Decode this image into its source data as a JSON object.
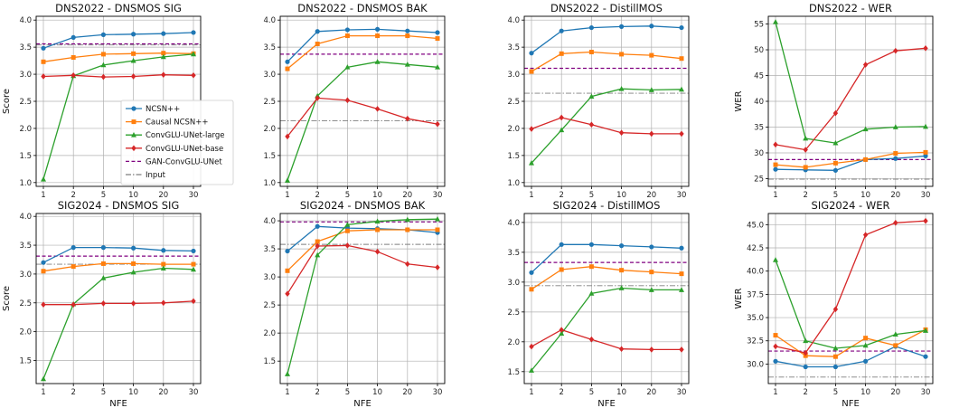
{
  "chart_data": {
    "type": "line",
    "x": [
      "1",
      "2",
      "5",
      "10",
      "20",
      "30"
    ],
    "xlabel": "NFE",
    "series_styles": [
      {
        "name": "NCSN++",
        "color": "#1f77b4",
        "marker": "circle",
        "dash": "solid"
      },
      {
        "name": "Causal NCSN++",
        "color": "#ff7f0e",
        "marker": "square",
        "dash": "solid"
      },
      {
        "name": "ConvGLU-UNet-large",
        "color": "#2ca02c",
        "marker": "triangle",
        "dash": "solid"
      },
      {
        "name": "ConvGLU-UNet-base",
        "color": "#d62728",
        "marker": "diamond",
        "dash": "solid"
      },
      {
        "name": "GAN-ConvGLU-UNet",
        "color": "#800080",
        "marker": "none",
        "dash": "dashed"
      },
      {
        "name": "Input",
        "color": "#7f7f7f",
        "marker": "none",
        "dash": "dashdot"
      }
    ],
    "panels": [
      {
        "title": "DNS2022 - DNSMOS SIG",
        "ylabel": "Score",
        "ylim": [
          0.93,
          4.07
        ],
        "yticks": [
          "1.0",
          "1.5",
          "2.0",
          "2.5",
          "3.0",
          "3.5",
          "4.0"
        ],
        "legend": "center-right",
        "series": [
          {
            "name": "NCSN++",
            "values": [
              3.48,
              3.68,
              3.73,
              3.74,
              3.75,
              3.77
            ]
          },
          {
            "name": "Causal NCSN++",
            "values": [
              3.23,
              3.31,
              3.37,
              3.38,
              3.39,
              3.38
            ]
          },
          {
            "name": "ConvGLU-UNet-large",
            "values": [
              1.06,
              2.97,
              3.17,
              3.25,
              3.32,
              3.37
            ]
          },
          {
            "name": "ConvGLU-UNet-base",
            "values": [
              2.96,
              2.98,
              2.95,
              2.96,
              2.99,
              2.98
            ]
          },
          {
            "name": "GAN-ConvGLU-UNet",
            "hline": 3.56
          },
          {
            "name": "Input",
            "hline": 3.54
          }
        ]
      },
      {
        "title": "DNS2022 - DNSMOS BAK",
        "ylabel": "",
        "ylim": [
          0.93,
          4.07
        ],
        "yticks": [
          "1.0",
          "1.5",
          "2.0",
          "2.5",
          "3.0",
          "3.5",
          "4.0"
        ],
        "series": [
          {
            "name": "NCSN++",
            "values": [
              3.23,
              3.79,
              3.82,
              3.83,
              3.8,
              3.77
            ]
          },
          {
            "name": "Causal NCSN++",
            "values": [
              3.1,
              3.56,
              3.71,
              3.71,
              3.71,
              3.66
            ]
          },
          {
            "name": "ConvGLU-UNet-large",
            "values": [
              1.04,
              2.6,
              3.13,
              3.23,
              3.18,
              3.13
            ]
          },
          {
            "name": "ConvGLU-UNet-base",
            "values": [
              1.85,
              2.56,
              2.52,
              2.36,
              2.18,
              2.08
            ]
          },
          {
            "name": "GAN-ConvGLU-UNet",
            "hline": 3.37
          },
          {
            "name": "Input",
            "hline": 2.14
          }
        ]
      },
      {
        "title": "DNS2022 - DistillMOS",
        "ylabel": "",
        "ylim": [
          0.93,
          4.07
        ],
        "yticks": [
          "1.0",
          "1.5",
          "2.0",
          "2.5",
          "3.0",
          "3.5",
          "4.0"
        ],
        "series": [
          {
            "name": "NCSN++",
            "values": [
              3.39,
              3.8,
              3.86,
              3.88,
              3.89,
              3.86
            ]
          },
          {
            "name": "Causal NCSN++",
            "values": [
              3.05,
              3.38,
              3.41,
              3.37,
              3.35,
              3.29
            ]
          },
          {
            "name": "ConvGLU-UNet-large",
            "values": [
              1.36,
              1.97,
              2.59,
              2.73,
              2.71,
              2.72
            ]
          },
          {
            "name": "ConvGLU-UNet-base",
            "values": [
              1.99,
              2.2,
              2.07,
              1.92,
              1.9,
              1.9
            ]
          },
          {
            "name": "GAN-ConvGLU-UNet",
            "hline": 3.11
          },
          {
            "name": "Input",
            "hline": 2.65
          }
        ]
      },
      {
        "title": "DNS2022 - WER",
        "ylabel": "WER",
        "ylim": [
          23.5,
          56.5
        ],
        "yticks": [
          "25",
          "30",
          "35",
          "40",
          "45",
          "50",
          "55"
        ],
        "series": [
          {
            "name": "NCSN++",
            "values": [
              26.8,
              26.7,
              26.6,
              28.7,
              28.9,
              29.4
            ]
          },
          {
            "name": "Causal NCSN++",
            "values": [
              27.7,
              27.2,
              28.0,
              28.7,
              29.9,
              30.1
            ]
          },
          {
            "name": "ConvGLU-UNet-large",
            "values": [
              55.4,
              32.8,
              31.9,
              34.6,
              35.0,
              35.1
            ]
          },
          {
            "name": "ConvGLU-UNet-base",
            "values": [
              31.6,
              30.6,
              37.7,
              47.1,
              49.8,
              50.3
            ]
          },
          {
            "name": "GAN-ConvGLU-UNet",
            "hline": 28.7
          },
          {
            "name": "Input",
            "hline": 24.9
          }
        ]
      },
      {
        "title": "SIG2024 - DNSMOS SIG",
        "ylabel": "Score",
        "ylim": [
          1.1,
          4.05
        ],
        "yticks": [
          "1.5",
          "2.0",
          "2.5",
          "3.0",
          "3.5",
          "4.0"
        ],
        "series": [
          {
            "name": "NCSN++",
            "values": [
              3.2,
              3.46,
              3.46,
              3.45,
              3.41,
              3.4
            ]
          },
          {
            "name": "Causal NCSN++",
            "values": [
              3.05,
              3.13,
              3.18,
              3.18,
              3.17,
              3.17
            ]
          },
          {
            "name": "ConvGLU-UNet-large",
            "values": [
              1.18,
              2.48,
              2.93,
              3.03,
              3.1,
              3.08
            ]
          },
          {
            "name": "ConvGLU-UNet-base",
            "values": [
              2.47,
              2.47,
              2.49,
              2.49,
              2.5,
              2.53
            ]
          },
          {
            "name": "GAN-ConvGLU-UNet",
            "hline": 3.31
          },
          {
            "name": "Input",
            "hline": 3.17
          }
        ]
      },
      {
        "title": "SIG2024 - DNSMOS BAK",
        "ylabel": "",
        "ylim": [
          1.1,
          4.13
        ],
        "yticks": [
          "1.5",
          "2.0",
          "2.5",
          "3.0",
          "3.5",
          "4.0"
        ],
        "series": [
          {
            "name": "NCSN++",
            "values": [
              3.46,
              3.9,
              3.87,
              3.86,
              3.84,
              3.79
            ]
          },
          {
            "name": "Causal NCSN++",
            "values": [
              3.11,
              3.63,
              3.82,
              3.84,
              3.84,
              3.84
            ]
          },
          {
            "name": "ConvGLU-UNet-large",
            "values": [
              1.27,
              3.39,
              3.93,
              3.99,
              4.02,
              4.03
            ]
          },
          {
            "name": "ConvGLU-UNet-base",
            "values": [
              2.7,
              3.55,
              3.56,
              3.45,
              3.23,
              3.17
            ]
          },
          {
            "name": "GAN-ConvGLU-UNet",
            "hline": 3.98
          },
          {
            "name": "Input",
            "hline": 3.58
          }
        ]
      },
      {
        "title": "SIG2024 - DistillMOS",
        "ylabel": "",
        "ylim": [
          1.3,
          4.15
        ],
        "yticks": [
          "1.5",
          "2.0",
          "2.5",
          "3.0",
          "3.5",
          "4.0"
        ],
        "series": [
          {
            "name": "NCSN++",
            "values": [
              3.16,
              3.63,
              3.63,
              3.61,
              3.59,
              3.57
            ]
          },
          {
            "name": "Causal NCSN++",
            "values": [
              2.88,
              3.21,
              3.26,
              3.2,
              3.17,
              3.14
            ]
          },
          {
            "name": "ConvGLU-UNet-large",
            "values": [
              1.52,
              2.14,
              2.81,
              2.9,
              2.87,
              2.87
            ]
          },
          {
            "name": "ConvGLU-UNet-base",
            "values": [
              1.92,
              2.2,
              2.04,
              1.88,
              1.87,
              1.87
            ]
          },
          {
            "name": "GAN-ConvGLU-UNet",
            "hline": 3.33
          },
          {
            "name": "Input",
            "hline": 2.94
          }
        ]
      },
      {
        "title": "SIG2024 - WER",
        "ylabel": "WER",
        "ylim": [
          27.9,
          46.2
        ],
        "yticks": [
          "30.0",
          "32.5",
          "35.0",
          "37.5",
          "40.0",
          "42.5",
          "45.0"
        ],
        "series": [
          {
            "name": "NCSN++",
            "values": [
              30.3,
              29.7,
              29.7,
              30.3,
              31.9,
              30.8
            ]
          },
          {
            "name": "Causal NCSN++",
            "values": [
              33.1,
              30.9,
              30.8,
              32.8,
              32.0,
              33.7
            ]
          },
          {
            "name": "ConvGLU-UNet-large",
            "values": [
              41.2,
              32.5,
              31.7,
              32.0,
              33.2,
              33.6
            ]
          },
          {
            "name": "ConvGLU-UNet-base",
            "values": [
              31.9,
              31.2,
              35.9,
              43.9,
              45.2,
              45.4
            ]
          },
          {
            "name": "GAN-ConvGLU-UNet",
            "hline": 31.4
          },
          {
            "name": "Input",
            "hline": 28.6
          }
        ]
      }
    ]
  }
}
